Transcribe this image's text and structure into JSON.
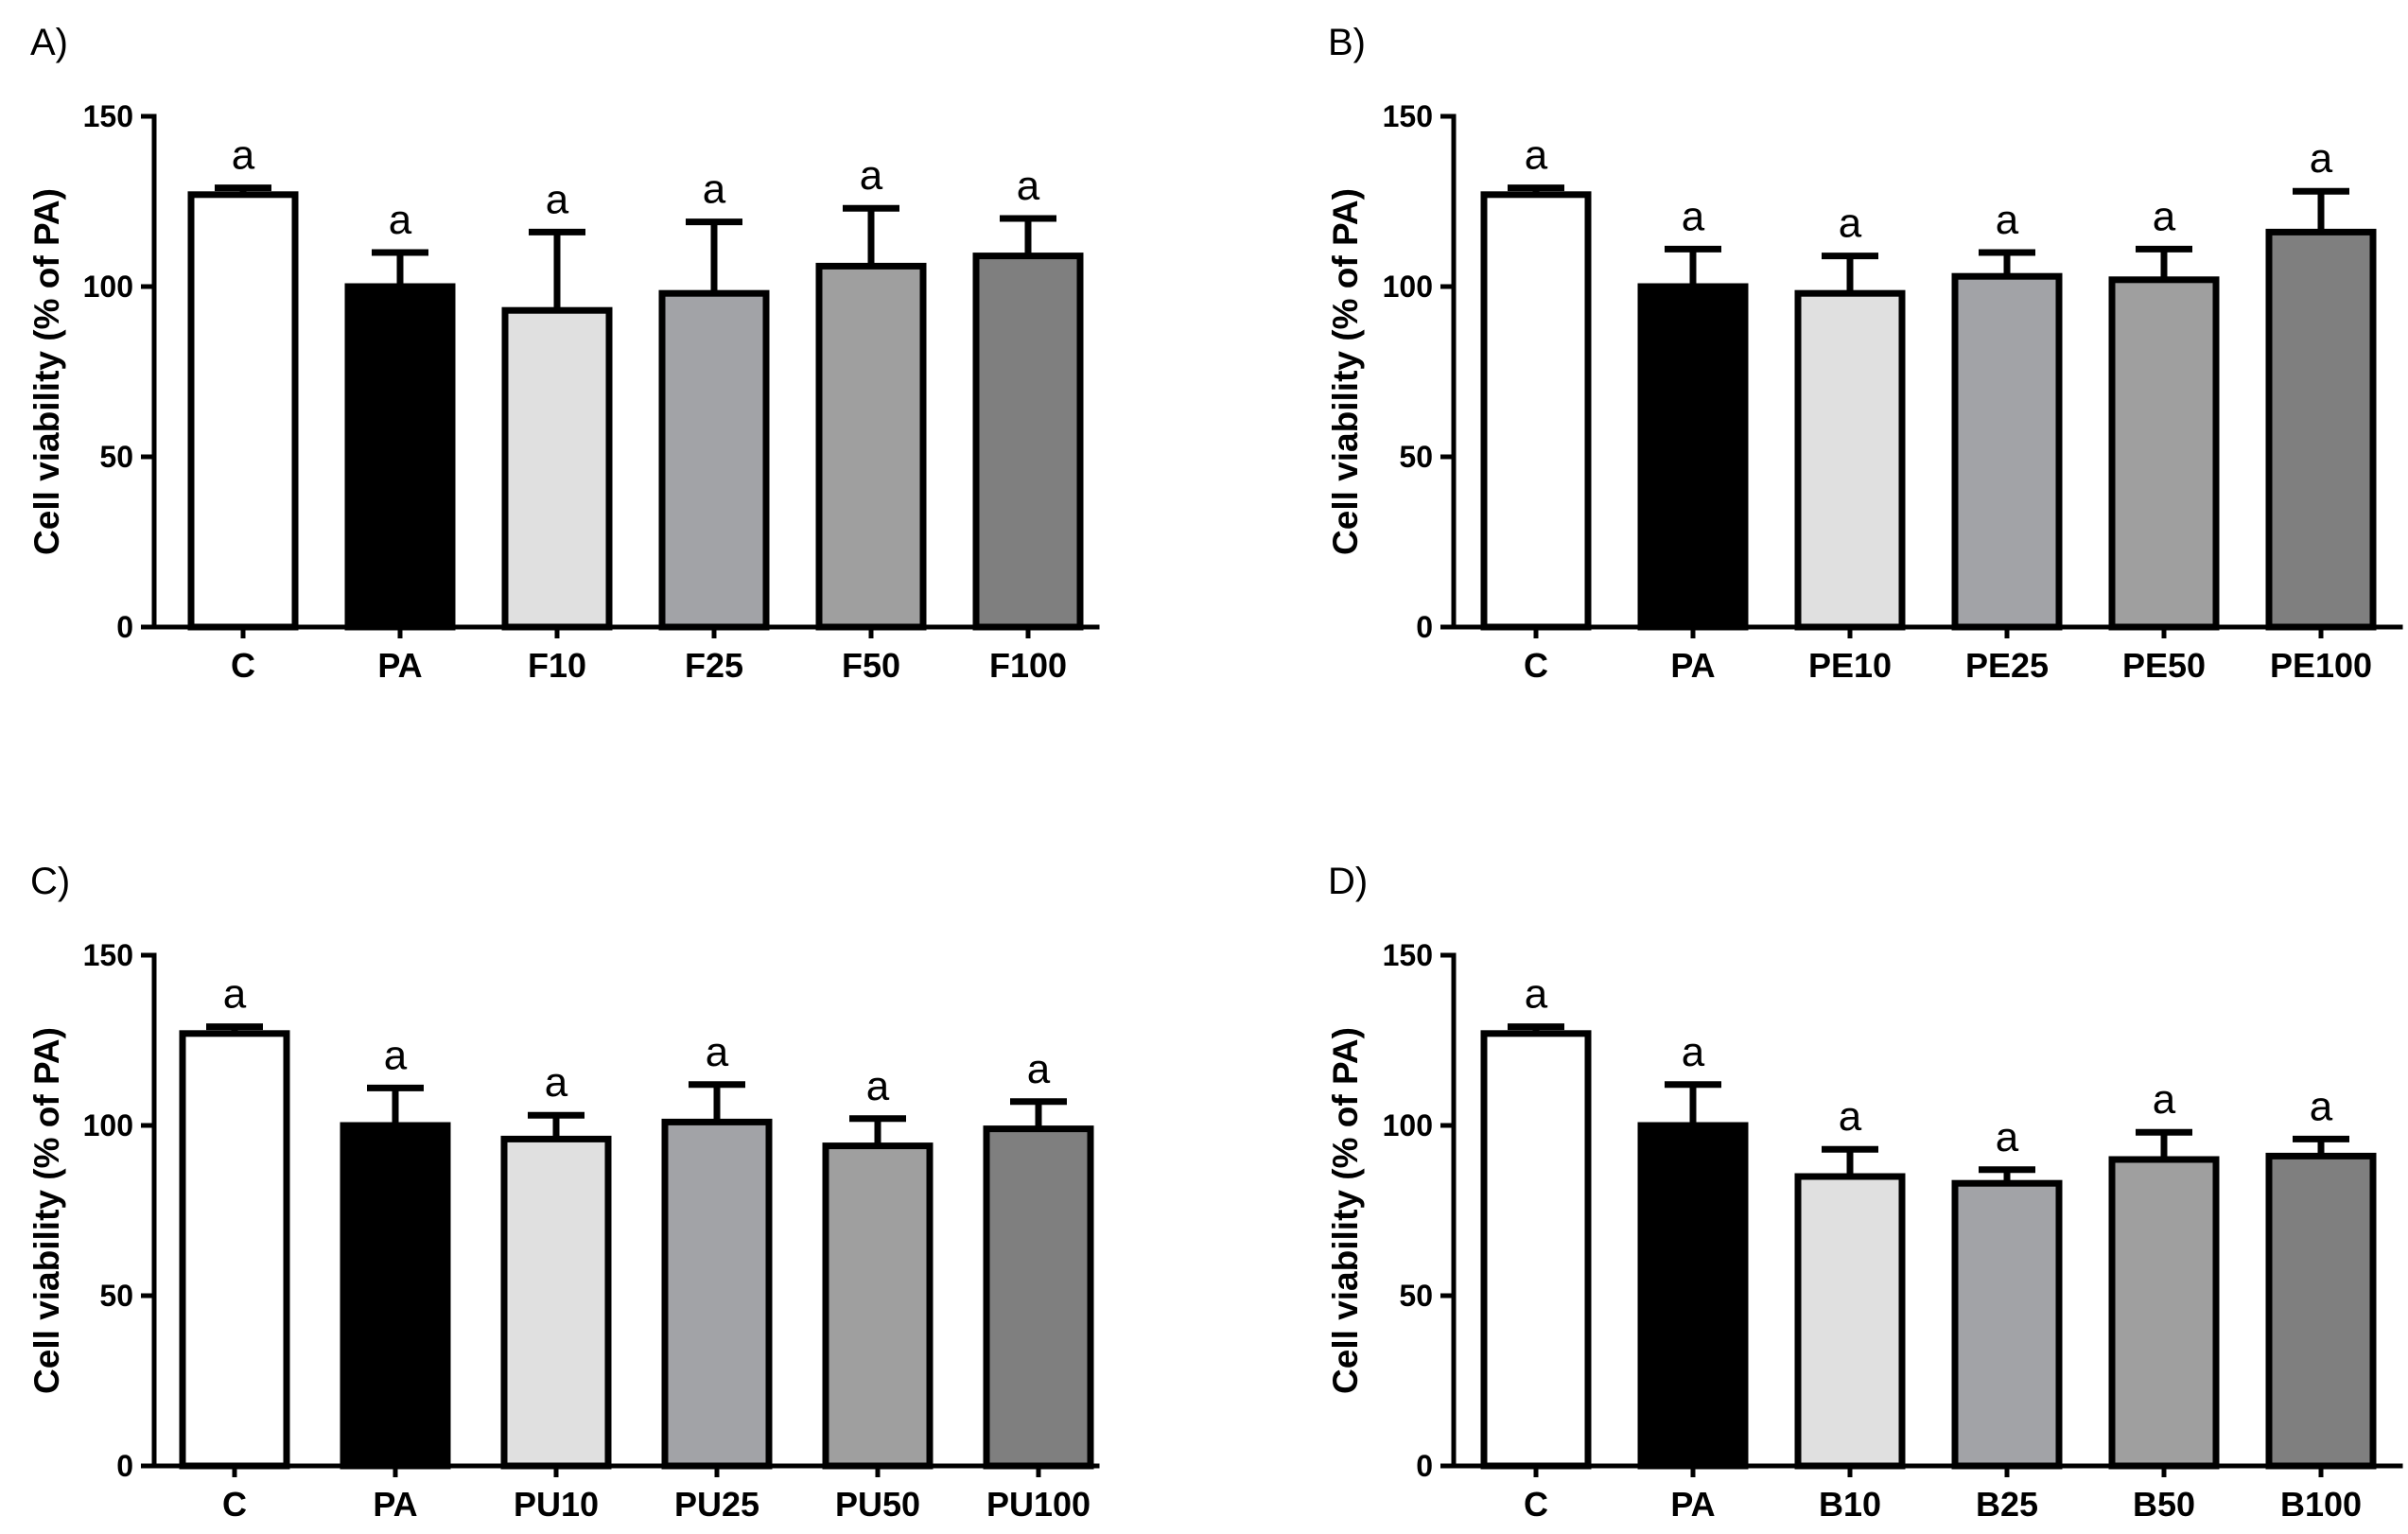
{
  "chart_data": [
    {
      "type": "bar",
      "panel_label": "A)",
      "ylabel": "Cell viability (% of PA)",
      "ylim": [
        0,
        150
      ],
      "yticks": [
        0,
        50,
        100,
        150
      ],
      "categories": [
        "C",
        "PA",
        "F10",
        "F25",
        "F50",
        "F100"
      ],
      "values": [
        127,
        100,
        93,
        98,
        106,
        109
      ],
      "errors": [
        2,
        10,
        23,
        21,
        17,
        11
      ],
      "significance": [
        "a",
        "a",
        "a",
        "a",
        "a",
        "a"
      ],
      "colors": [
        "#ffffff",
        "#000000",
        "#e0e0e0",
        "#a2a3a7",
        "#9f9f9f",
        "#7f7f7f"
      ]
    },
    {
      "type": "bar",
      "panel_label": "B)",
      "ylabel": "Cell viability (% of PA)",
      "ylim": [
        0,
        150
      ],
      "yticks": [
        0,
        50,
        100,
        150
      ],
      "categories": [
        "C",
        "PA",
        "PE10",
        "PE25",
        "PE50",
        "PE100"
      ],
      "values": [
        127,
        100,
        98,
        103,
        102,
        116
      ],
      "errors": [
        2,
        11,
        11,
        7,
        9,
        12
      ],
      "significance": [
        "a",
        "a",
        "a",
        "a",
        "a",
        "a"
      ],
      "colors": [
        "#ffffff",
        "#000000",
        "#e0e0e0",
        "#a2a3a7",
        "#9f9f9f",
        "#7f7f7f"
      ]
    },
    {
      "type": "bar",
      "panel_label": "C)",
      "ylabel": "Cell viability (% of PA)",
      "ylim": [
        0,
        150
      ],
      "yticks": [
        0,
        50,
        100,
        150
      ],
      "categories": [
        "C",
        "PA",
        "PU10",
        "PU25",
        "PU50",
        "PU100"
      ],
      "values": [
        127,
        100,
        96,
        101,
        94,
        99
      ],
      "errors": [
        2,
        11,
        7,
        11,
        8,
        8
      ],
      "significance": [
        "a",
        "a",
        "a",
        "a",
        "a",
        "a"
      ],
      "colors": [
        "#ffffff",
        "#000000",
        "#e0e0e0",
        "#a2a3a7",
        "#9f9f9f",
        "#7f7f7f"
      ]
    },
    {
      "type": "bar",
      "panel_label": "D)",
      "ylabel": "Cell viability (% of PA)",
      "ylim": [
        0,
        150
      ],
      "yticks": [
        0,
        50,
        100,
        150
      ],
      "categories": [
        "C",
        "PA",
        "B10",
        "B25",
        "B50",
        "B100"
      ],
      "values": [
        127,
        100,
        85,
        83,
        90,
        91
      ],
      "errors": [
        2,
        12,
        8,
        4,
        8,
        5
      ],
      "significance": [
        "a",
        "a",
        "a",
        "a",
        "a",
        "a"
      ],
      "colors": [
        "#ffffff",
        "#000000",
        "#e0e0e0",
        "#a2a3a7",
        "#9f9f9f",
        "#7f7f7f"
      ]
    }
  ]
}
